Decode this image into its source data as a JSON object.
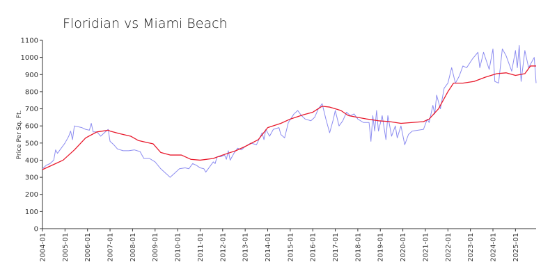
{
  "chart_data": {
    "type": "line",
    "title": "Floridian vs Miami Beach",
    "xlabel": "",
    "ylabel": "Price Per Sq. Ft.",
    "xlim": [
      "2004-01",
      "2025-12"
    ],
    "ylim": [
      0,
      1100
    ],
    "yticks": [
      0,
      100,
      200,
      300,
      400,
      500,
      600,
      700,
      800,
      900,
      1000,
      1100
    ],
    "xticks": [
      "2004-01",
      "2005-01",
      "2006-01",
      "2007-01",
      "2008-01",
      "2009-01",
      "2010-01",
      "2011-01",
      "2012-01",
      "2013-01",
      "2014-01",
      "2015-01",
      "2016-01",
      "2017-01",
      "2018-01",
      "2019-01",
      "2020-01",
      "2021-01",
      "2022-01",
      "2023-01",
      "2024-01",
      "2025-01"
    ],
    "grid": false,
    "series": [
      {
        "name": "",
        "color": "#8c8cf0",
        "points": [
          [
            "2004-01",
            350
          ],
          [
            "2004-03",
            370
          ],
          [
            "2004-05",
            380
          ],
          [
            "2004-07",
            400
          ],
          [
            "2004-08",
            460
          ],
          [
            "2004-09",
            440
          ],
          [
            "2004-11",
            470
          ],
          [
            "2005-01",
            500
          ],
          [
            "2005-03",
            540
          ],
          [
            "2005-04",
            570
          ],
          [
            "2005-05",
            520
          ],
          [
            "2005-06",
            600
          ],
          [
            "2005-08",
            595
          ],
          [
            "2005-10",
            590
          ],
          [
            "2005-12",
            580
          ],
          [
            "2006-02",
            575
          ],
          [
            "2006-03",
            615
          ],
          [
            "2006-04",
            565
          ],
          [
            "2006-06",
            565
          ],
          [
            "2006-08",
            540
          ],
          [
            "2006-10",
            560
          ],
          [
            "2006-12",
            580
          ],
          [
            "2007-01",
            510
          ],
          [
            "2007-03",
            490
          ],
          [
            "2007-05",
            465
          ],
          [
            "2007-08",
            455
          ],
          [
            "2007-11",
            455
          ],
          [
            "2008-02",
            460
          ],
          [
            "2008-05",
            450
          ],
          [
            "2008-07",
            410
          ],
          [
            "2008-10",
            410
          ],
          [
            "2009-01",
            390
          ],
          [
            "2009-04",
            350
          ],
          [
            "2009-07",
            320
          ],
          [
            "2009-09",
            300
          ],
          [
            "2009-12",
            330
          ],
          [
            "2010-02",
            350
          ],
          [
            "2010-05",
            355
          ],
          [
            "2010-07",
            350
          ],
          [
            "2010-09",
            380
          ],
          [
            "2010-11",
            370
          ],
          [
            "2011-01",
            355
          ],
          [
            "2011-03",
            350
          ],
          [
            "2011-04",
            330
          ],
          [
            "2011-06",
            360
          ],
          [
            "2011-08",
            390
          ],
          [
            "2011-09",
            380
          ],
          [
            "2011-10",
            420
          ],
          [
            "2011-12",
            420
          ],
          [
            "2012-02",
            430
          ],
          [
            "2012-03",
            405
          ],
          [
            "2012-04",
            455
          ],
          [
            "2012-05",
            400
          ],
          [
            "2012-07",
            440
          ],
          [
            "2012-09",
            470
          ],
          [
            "2012-11",
            460
          ],
          [
            "2013-01",
            480
          ],
          [
            "2013-04",
            500
          ],
          [
            "2013-07",
            490
          ],
          [
            "2013-10",
            560
          ],
          [
            "2013-11",
            520
          ],
          [
            "2013-12",
            580
          ],
          [
            "2014-02",
            540
          ],
          [
            "2014-04",
            580
          ],
          [
            "2014-07",
            590
          ],
          [
            "2014-08",
            550
          ],
          [
            "2014-10",
            530
          ],
          [
            "2014-12",
            620
          ],
          [
            "2015-03",
            670
          ],
          [
            "2015-05",
            690
          ],
          [
            "2015-07",
            660
          ],
          [
            "2015-09",
            640
          ],
          [
            "2015-12",
            630
          ],
          [
            "2016-02",
            650
          ],
          [
            "2016-04",
            700
          ],
          [
            "2016-06",
            730
          ],
          [
            "2016-08",
            640
          ],
          [
            "2016-10",
            560
          ],
          [
            "2016-12",
            640
          ],
          [
            "2017-01",
            690
          ],
          [
            "2017-03",
            600
          ],
          [
            "2017-05",
            630
          ],
          [
            "2017-07",
            680
          ],
          [
            "2017-09",
            660
          ],
          [
            "2017-11",
            670
          ],
          [
            "2018-01",
            640
          ],
          [
            "2018-04",
            620
          ],
          [
            "2018-07",
            620
          ],
          [
            "2018-08",
            510
          ],
          [
            "2018-09",
            660
          ],
          [
            "2018-10",
            570
          ],
          [
            "2018-11",
            690
          ],
          [
            "2018-12",
            570
          ],
          [
            "2019-02",
            660
          ],
          [
            "2019-04",
            520
          ],
          [
            "2019-05",
            660
          ],
          [
            "2019-07",
            540
          ],
          [
            "2019-09",
            600
          ],
          [
            "2019-10",
            530
          ],
          [
            "2019-12",
            600
          ],
          [
            "2020-02",
            490
          ],
          [
            "2020-04",
            550
          ],
          [
            "2020-06",
            570
          ],
          [
            "2020-09",
            575
          ],
          [
            "2020-12",
            580
          ],
          [
            "2021-02",
            640
          ],
          [
            "2021-03",
            620
          ],
          [
            "2021-05",
            720
          ],
          [
            "2021-06",
            670
          ],
          [
            "2021-07",
            780
          ],
          [
            "2021-09",
            700
          ],
          [
            "2021-11",
            820
          ],
          [
            "2022-01",
            850
          ],
          [
            "2022-03",
            940
          ],
          [
            "2022-05",
            850
          ],
          [
            "2022-07",
            890
          ],
          [
            "2022-09",
            950
          ],
          [
            "2022-11",
            940
          ],
          [
            "2023-02",
            990
          ],
          [
            "2023-05",
            1030
          ],
          [
            "2023-06",
            940
          ],
          [
            "2023-08",
            1030
          ],
          [
            "2023-11",
            930
          ],
          [
            "2024-01",
            1050
          ],
          [
            "2024-02",
            860
          ],
          [
            "2024-04",
            850
          ],
          [
            "2024-06",
            1050
          ],
          [
            "2024-08",
            1010
          ],
          [
            "2024-11",
            920
          ],
          [
            "2025-01",
            1040
          ],
          [
            "2025-02",
            940
          ],
          [
            "2025-03",
            1070
          ],
          [
            "2025-04",
            860
          ],
          [
            "2025-06",
            1040
          ],
          [
            "2025-08",
            940
          ],
          [
            "2025-11",
            1000
          ],
          [
            "2025-12",
            850
          ]
        ]
      },
      {
        "name": "",
        "color": "#e8192c",
        "points": [
          [
            "2004-01",
            345
          ],
          [
            "2004-06",
            370
          ],
          [
            "2004-12",
            400
          ],
          [
            "2005-06",
            460
          ],
          [
            "2005-12",
            530
          ],
          [
            "2006-06",
            565
          ],
          [
            "2006-12",
            575
          ],
          [
            "2007-01",
            570
          ],
          [
            "2007-06",
            555
          ],
          [
            "2007-12",
            540
          ],
          [
            "2008-04",
            515
          ],
          [
            "2008-08",
            505
          ],
          [
            "2008-12",
            495
          ],
          [
            "2009-04",
            445
          ],
          [
            "2009-09",
            430
          ],
          [
            "2010-03",
            430
          ],
          [
            "2010-08",
            405
          ],
          [
            "2011-01",
            400
          ],
          [
            "2011-08",
            410
          ],
          [
            "2012-01",
            430
          ],
          [
            "2012-08",
            455
          ],
          [
            "2013-01",
            480
          ],
          [
            "2013-08",
            520
          ],
          [
            "2014-01",
            590
          ],
          [
            "2014-08",
            615
          ],
          [
            "2015-01",
            640
          ],
          [
            "2015-08",
            665
          ],
          [
            "2016-01",
            680
          ],
          [
            "2016-06",
            715
          ],
          [
            "2016-10",
            710
          ],
          [
            "2017-01",
            700
          ],
          [
            "2017-04",
            690
          ],
          [
            "2017-08",
            660
          ],
          [
            "2018-01",
            650
          ],
          [
            "2018-06",
            640
          ],
          [
            "2018-12",
            630
          ],
          [
            "2019-06",
            625
          ],
          [
            "2019-12",
            615
          ],
          [
            "2020-06",
            620
          ],
          [
            "2020-12",
            625
          ],
          [
            "2021-03",
            640
          ],
          [
            "2021-08",
            700
          ],
          [
            "2022-01",
            800
          ],
          [
            "2022-04",
            850
          ],
          [
            "2022-09",
            850
          ],
          [
            "2023-03",
            860
          ],
          [
            "2023-09",
            885
          ],
          [
            "2024-03",
            905
          ],
          [
            "2024-08",
            910
          ],
          [
            "2025-01",
            895
          ],
          [
            "2025-06",
            905
          ],
          [
            "2025-09",
            950
          ],
          [
            "2025-12",
            950
          ]
        ]
      }
    ]
  }
}
